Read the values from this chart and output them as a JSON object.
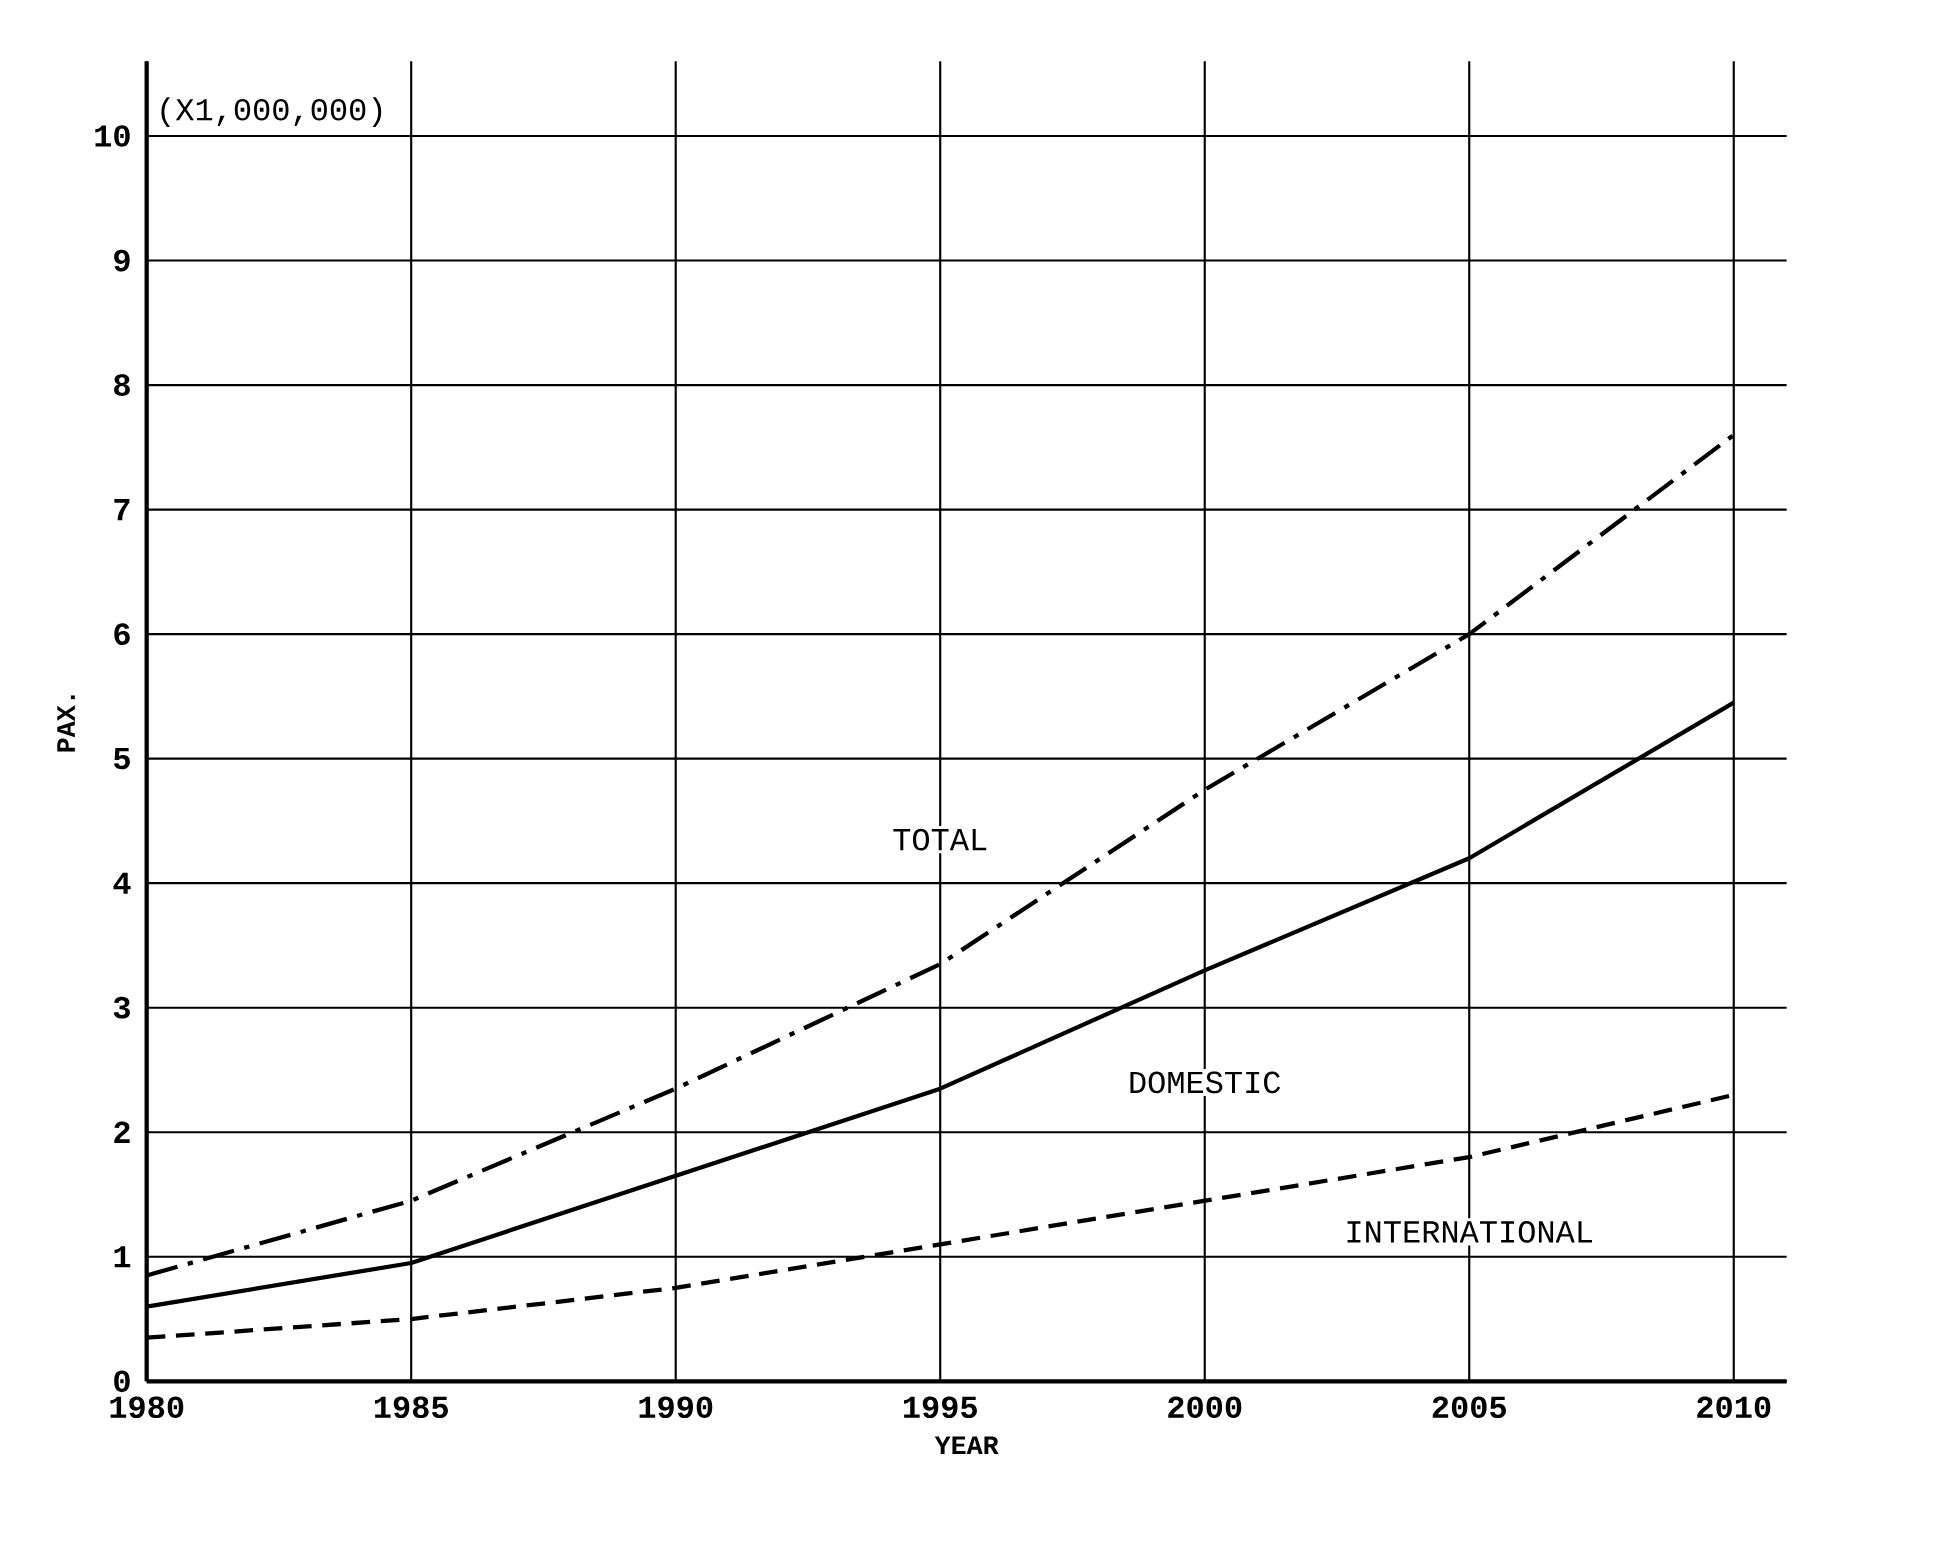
{
  "chart_data": {
    "type": "line",
    "xlabel": "YEAR",
    "ylabel": "PAX.",
    "annotations": [
      "(X1,000,000)"
    ],
    "x": [
      1980,
      1985,
      1990,
      1995,
      2000,
      2005,
      2010
    ],
    "series": [
      {
        "name": "TOTAL",
        "color": "#000000",
        "line_style": "dashdot",
        "values": [
          0.85,
          1.45,
          2.35,
          3.35,
          4.75,
          6.0,
          7.6
        ]
      },
      {
        "name": "DOMESTIC",
        "color": "#000000",
        "line_style": "solid",
        "values": [
          0.6,
          0.95,
          1.65,
          2.35,
          3.3,
          4.2,
          5.45
        ]
      },
      {
        "name": "INTERNATIONAL",
        "color": "#000000",
        "line_style": "dashed",
        "values": [
          0.35,
          0.5,
          0.75,
          1.1,
          1.45,
          1.8,
          2.3
        ]
      }
    ],
    "xlim": [
      1980,
      2011
    ],
    "ylim": [
      0,
      10.6
    ],
    "xticks": [
      1980,
      1985,
      1990,
      1995,
      2000,
      2005,
      2010
    ],
    "yticks": [
      0,
      1,
      2,
      3,
      4,
      5,
      6,
      7,
      8,
      9,
      10
    ],
    "grid": true,
    "marker": "none"
  }
}
